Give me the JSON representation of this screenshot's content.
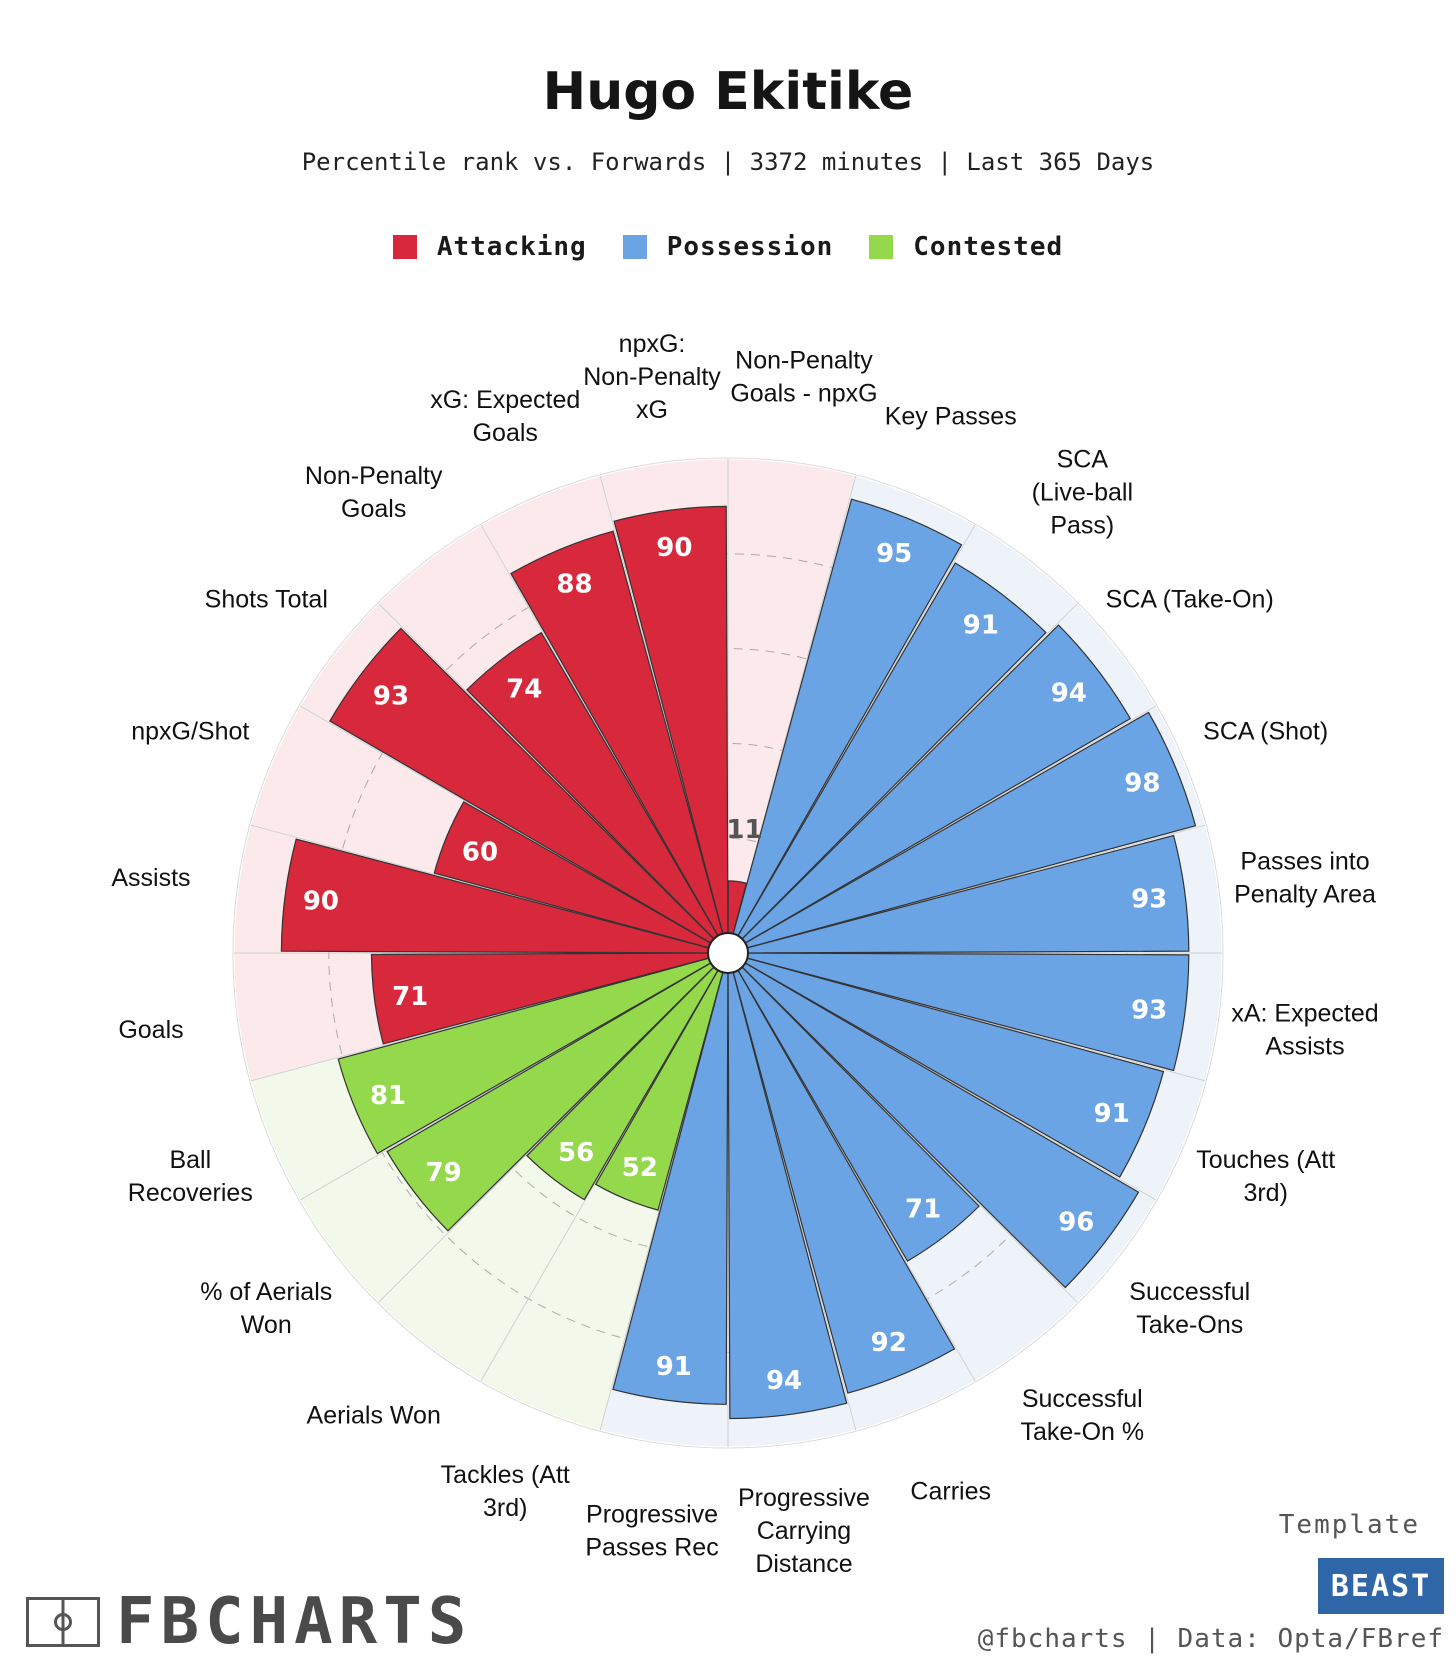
{
  "title": "Hugo Ekitike",
  "subtitle": "Percentile rank vs. Forwards | 3372 minutes | Last 365 Days",
  "legend": [
    {
      "label": "Attacking",
      "color": "#d7283c"
    },
    {
      "label": "Possession",
      "color": "#6aa4e5"
    },
    {
      "label": "Contested",
      "color": "#94d84b"
    }
  ],
  "chart_data": {
    "type": "radial-bar",
    "max": 100,
    "gridlines": [
      20,
      40,
      60,
      80
    ],
    "categories": [
      {
        "label": "Non-Penalty Goals - npxG",
        "value": 11,
        "group": "Attacking"
      },
      {
        "label": "Key Passes",
        "value": 95,
        "group": "Possession"
      },
      {
        "label": "SCA (Live-ball Pass)",
        "value": 91,
        "group": "Possession"
      },
      {
        "label": "SCA (Take-On)",
        "value": 94,
        "group": "Possession"
      },
      {
        "label": "SCA (Shot)",
        "value": 98,
        "group": "Possession"
      },
      {
        "label": "Passes into Penalty Area",
        "value": 93,
        "group": "Possession"
      },
      {
        "label": "xA: Expected Assists",
        "value": 93,
        "group": "Possession"
      },
      {
        "label": "Touches (Att 3rd)",
        "value": 91,
        "group": "Possession"
      },
      {
        "label": "Successful Take-Ons",
        "value": 96,
        "group": "Possession"
      },
      {
        "label": "Successful Take-On %",
        "value": 71,
        "group": "Possession"
      },
      {
        "label": "Carries",
        "value": 92,
        "group": "Possession"
      },
      {
        "label": "Progressive Carrying Distance",
        "value": 94,
        "group": "Possession"
      },
      {
        "label": "Progressive Passes Rec",
        "value": 91,
        "group": "Possession"
      },
      {
        "label": "Tackles (Att 3rd)",
        "value": 52,
        "group": "Contested"
      },
      {
        "label": "Aerials Won",
        "value": 56,
        "group": "Contested"
      },
      {
        "label": "% of Aerials Won",
        "value": 79,
        "group": "Contested"
      },
      {
        "label": "Ball Recoveries",
        "value": 81,
        "group": "Contested"
      },
      {
        "label": "Goals",
        "value": 71,
        "group": "Attacking"
      },
      {
        "label": "Assists",
        "value": 90,
        "group": "Attacking"
      },
      {
        "label": "npxG/Shot",
        "value": 60,
        "group": "Attacking"
      },
      {
        "label": "Shots Total",
        "value": 93,
        "group": "Attacking"
      },
      {
        "label": "Non-Penalty Goals",
        "value": 74,
        "group": "Attacking"
      },
      {
        "label": "xG: Expected Goals",
        "value": 88,
        "group": "Attacking"
      },
      {
        "label": "npxG: Non-Penalty xG",
        "value": 90,
        "group": "Attacking"
      }
    ]
  },
  "colors": {
    "Attacking": {
      "bar": "#d7283c",
      "bg": "#fbe9ec"
    },
    "Possession": {
      "bar": "#6aa4e5",
      "bg": "#eef3fa"
    },
    "Contested": {
      "bar": "#94d84b",
      "bg": "#f2f8ea"
    }
  },
  "branding": {
    "logo_text": "FBCHARTS",
    "template_label": "Template",
    "template_name": "BEAST",
    "credits": "@fbcharts | Data: Opta/FBref"
  }
}
